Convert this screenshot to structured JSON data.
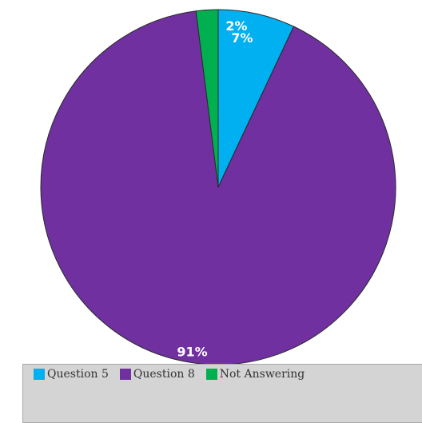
{
  "chart_data": {
    "type": "pie",
    "title": "",
    "slices": [
      {
        "name": "Question 5",
        "value": 7,
        "label": "7%",
        "color": "#00b0f0"
      },
      {
        "name": "Question 8",
        "value": 91,
        "label": "91%",
        "color": "#7030a0"
      },
      {
        "name": "Not Answering",
        "value": 2,
        "label": "2%",
        "color": "#00b050"
      }
    ],
    "legend_position": "bottom",
    "border_color": "#2a2a2a"
  }
}
